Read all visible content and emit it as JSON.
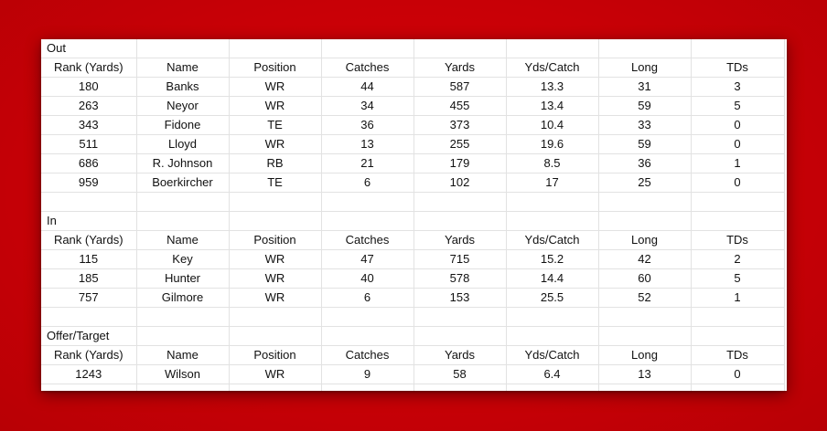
{
  "sections": [
    {
      "title": "Out",
      "headers": [
        "Rank (Yards)",
        "Name",
        "Position",
        "Catches",
        "Yards",
        "Yds/Catch",
        "Long",
        "TDs"
      ],
      "rows": [
        [
          "180",
          "Banks",
          "WR",
          "44",
          "587",
          "13.3",
          "31",
          "3"
        ],
        [
          "263",
          "Neyor",
          "WR",
          "34",
          "455",
          "13.4",
          "59",
          "5"
        ],
        [
          "343",
          "Fidone",
          "TE",
          "36",
          "373",
          "10.4",
          "33",
          "0"
        ],
        [
          "511",
          "Lloyd",
          "WR",
          "13",
          "255",
          "19.6",
          "59",
          "0"
        ],
        [
          "686",
          "R. Johnson",
          "RB",
          "21",
          "179",
          "8.5",
          "36",
          "1"
        ],
        [
          "959",
          "Boerkircher",
          "TE",
          "6",
          "102",
          "17",
          "25",
          "0"
        ]
      ]
    },
    {
      "title": "In",
      "headers": [
        "Rank (Yards)",
        "Name",
        "Position",
        "Catches",
        "Yards",
        "Yds/Catch",
        "Long",
        "TDs"
      ],
      "rows": [
        [
          "115",
          "Key",
          "WR",
          "47",
          "715",
          "15.2",
          "42",
          "2"
        ],
        [
          "185",
          "Hunter",
          "WR",
          "40",
          "578",
          "14.4",
          "60",
          "5"
        ],
        [
          "757",
          "Gilmore",
          "WR",
          "6",
          "153",
          "25.5",
          "52",
          "1"
        ]
      ]
    },
    {
      "title": "Offer/Target",
      "headers": [
        "Rank (Yards)",
        "Name",
        "Position",
        "Catches",
        "Yards",
        "Yds/Catch",
        "Long",
        "TDs"
      ],
      "rows": [
        [
          "1243",
          "Wilson",
          "WR",
          "9",
          "58",
          "6.4",
          "13",
          "0"
        ]
      ]
    }
  ]
}
